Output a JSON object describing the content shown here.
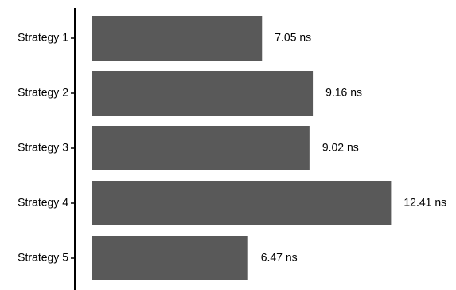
{
  "chart_data": {
    "type": "bar",
    "orientation": "horizontal",
    "title": "",
    "xlabel": "",
    "ylabel": "",
    "categories": [
      "Strategy 1",
      "Strategy 2",
      "Strategy 3",
      "Strategy 4",
      "Strategy 5"
    ],
    "values": [
      7.05,
      9.16,
      9.02,
      12.41,
      6.47
    ],
    "value_labels": [
      "7.05 ns",
      "9.16 ns",
      "9.02 ns",
      "12.41 ns",
      "6.47 ns"
    ],
    "unit": "ns",
    "grid": false,
    "legend": "none",
    "colors": {
      "bar": "#595959",
      "axis": "#000000"
    }
  }
}
